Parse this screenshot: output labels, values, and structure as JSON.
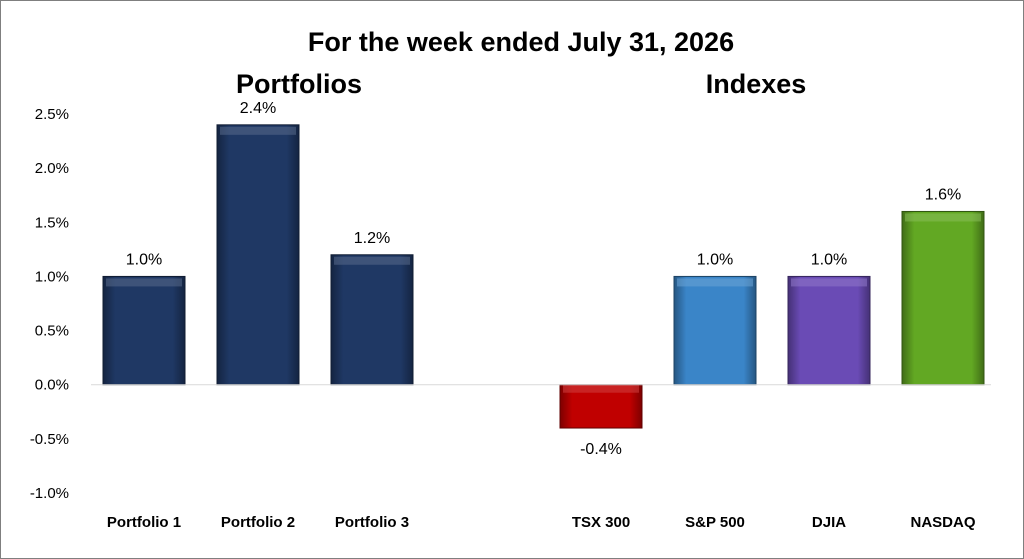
{
  "chart_data": {
    "type": "bar",
    "title": "For the week ended July 31, 2026",
    "group_labels": [
      "Portfolios",
      "Indexes"
    ],
    "categories": [
      "Portfolio 1",
      "Portfolio 2",
      "Portfolio 3",
      "TSX 300",
      "S&P 500",
      "DJIA",
      "NASDAQ"
    ],
    "values": [
      1.0,
      2.4,
      1.2,
      -0.4,
      1.0,
      1.0,
      1.6
    ],
    "data_labels": [
      "1.0%",
      "2.4%",
      "1.2%",
      "-0.4%",
      "1.0%",
      "1.0%",
      "1.6%"
    ],
    "colors": [
      "#1f3864",
      "#1f3864",
      "#1f3864",
      "#c00000",
      "#3a85c8",
      "#6a4bb5",
      "#62a823"
    ],
    "ylim": [
      -1.0,
      2.5
    ],
    "yticks": [
      2.5,
      2.0,
      1.5,
      1.0,
      0.5,
      0.0,
      -0.5,
      -1.0
    ],
    "ytick_labels": [
      "2.5%",
      "2.0%",
      "1.5%",
      "1.0%",
      "0.5%",
      "0.0%",
      "-0.5%",
      "-1.0%"
    ],
    "grid": false,
    "legend": "none"
  }
}
